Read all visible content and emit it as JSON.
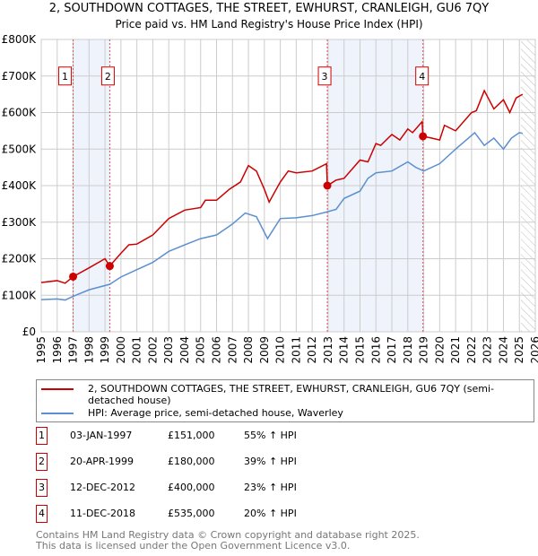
{
  "chart_data": {
    "type": "line",
    "title": "2, SOUTHDOWN COTTAGES, THE STREET, EWHURST, CRANLEIGH, GU6 7QY",
    "subtitle": "Price paid vs. HM Land Registry's House Price Index (HPI)",
    "xlim": [
      1995,
      2026
    ],
    "ylim": [
      0,
      800000
    ],
    "x_ticks": [
      "1995",
      "1996",
      "1997",
      "1998",
      "1999",
      "2000",
      "2001",
      "2002",
      "2003",
      "2004",
      "2005",
      "2006",
      "2007",
      "2008",
      "2009",
      "2010",
      "2011",
      "2012",
      "2013",
      "2014",
      "2015",
      "2016",
      "2017",
      "2018",
      "2019",
      "2020",
      "2021",
      "2022",
      "2023",
      "2024",
      "2025",
      "2026"
    ],
    "y_ticks": [
      {
        "v": 0,
        "l": "£0"
      },
      {
        "v": 100000,
        "l": "£100K"
      },
      {
        "v": 200000,
        "l": "£200K"
      },
      {
        "v": 300000,
        "l": "£300K"
      },
      {
        "v": 400000,
        "l": "£400K"
      },
      {
        "v": 500000,
        "l": "£500K"
      },
      {
        "v": 600000,
        "l": "£600K"
      },
      {
        "v": 700000,
        "l": "£700K"
      },
      {
        "v": 800000,
        "l": "£800K"
      }
    ],
    "grid": true,
    "series": [
      {
        "name": "2, SOUTHDOWN COTTAGES, THE STREET, EWHURST, CRANLEIGH, GU6 7QY (semi-detached house)",
        "color": "#cc0000",
        "x": [
          1995,
          1996,
          1996.5,
          1997.0,
          1998,
          1999,
          1999.3,
          2000,
          2000.5,
          2001,
          2002,
          2003,
          2004,
          2005,
          2005.3,
          2006,
          2006.8,
          2007.5,
          2008,
          2008.5,
          2009,
          2009.3,
          2010,
          2010.5,
          2011,
          2012,
          2012.9,
          2012.95,
          2013.5,
          2014,
          2015,
          2015.5,
          2016,
          2016.3,
          2017,
          2017.5,
          2018,
          2018.3,
          2018.9,
          2018.95,
          2019.5,
          2020,
          2020.3,
          2021,
          2022,
          2022.3,
          2022.8,
          2023.4,
          2024,
          2024.4,
          2024.8,
          2025.2
        ],
        "y": [
          135000,
          140000,
          133000,
          151000,
          175000,
          200000,
          180000,
          215000,
          238000,
          240000,
          265000,
          310000,
          333000,
          340000,
          360000,
          360000,
          390000,
          410000,
          455000,
          440000,
          390000,
          355000,
          410000,
          440000,
          435000,
          440000,
          460000,
          400000,
          415000,
          420000,
          470000,
          465000,
          515000,
          510000,
          540000,
          525000,
          555000,
          545000,
          575000,
          535000,
          530000,
          525000,
          565000,
          550000,
          600000,
          605000,
          660000,
          610000,
          635000,
          600000,
          640000,
          650000
        ]
      },
      {
        "name": "HPI: Average price, semi-detached house, Waverley",
        "color": "#5b8fd0",
        "x": [
          1995,
          1996,
          1996.5,
          1997.0,
          1998,
          1999.3,
          2000,
          2001,
          2002,
          2003,
          2004,
          2005,
          2006,
          2007,
          2007.8,
          2008.5,
          2009.2,
          2010,
          2011,
          2012,
          2012.9,
          2013.5,
          2014,
          2015,
          2015.5,
          2016,
          2017,
          2018,
          2018.5,
          2019,
          2020,
          2021,
          2022.2,
          2022.8,
          2023.4,
          2024,
          2024.5,
          2025,
          2025.2
        ],
        "y": [
          88000,
          90000,
          87000,
          97000,
          115000,
          130000,
          150000,
          170000,
          190000,
          220000,
          238000,
          255000,
          265000,
          295000,
          325000,
          315000,
          255000,
          310000,
          312000,
          318000,
          328000,
          335000,
          365000,
          385000,
          420000,
          435000,
          440000,
          465000,
          450000,
          440000,
          460000,
          500000,
          545000,
          510000,
          530000,
          500000,
          530000,
          545000,
          543000
        ]
      }
    ],
    "shaded_ranges": [
      [
        1997.0,
        1999.3
      ],
      [
        2012.95,
        2018.95
      ]
    ],
    "forecast_hatch_from": 2025.1,
    "sales": [
      {
        "n": "1",
        "x": 1997.0,
        "y": 151000,
        "date": "03-JAN-1997",
        "price": "£151,000",
        "hpi": "55% ↑ HPI"
      },
      {
        "n": "2",
        "x": 1999.3,
        "y": 180000,
        "date": "20-APR-1999",
        "price": "£180,000",
        "hpi": "39% ↑ HPI"
      },
      {
        "n": "3",
        "x": 2012.95,
        "y": 400000,
        "date": "12-DEC-2012",
        "price": "£400,000",
        "hpi": "23% ↑ HPI"
      },
      {
        "n": "4",
        "x": 2018.95,
        "y": 535000,
        "date": "11-DEC-2018",
        "price": "£535,000",
        "hpi": "20% ↑ HPI"
      }
    ]
  },
  "footer": {
    "line1": "Contains HM Land Registry data © Crown copyright and database right 2025.",
    "line2": "This data is licensed under the Open Government Licence v3.0."
  }
}
